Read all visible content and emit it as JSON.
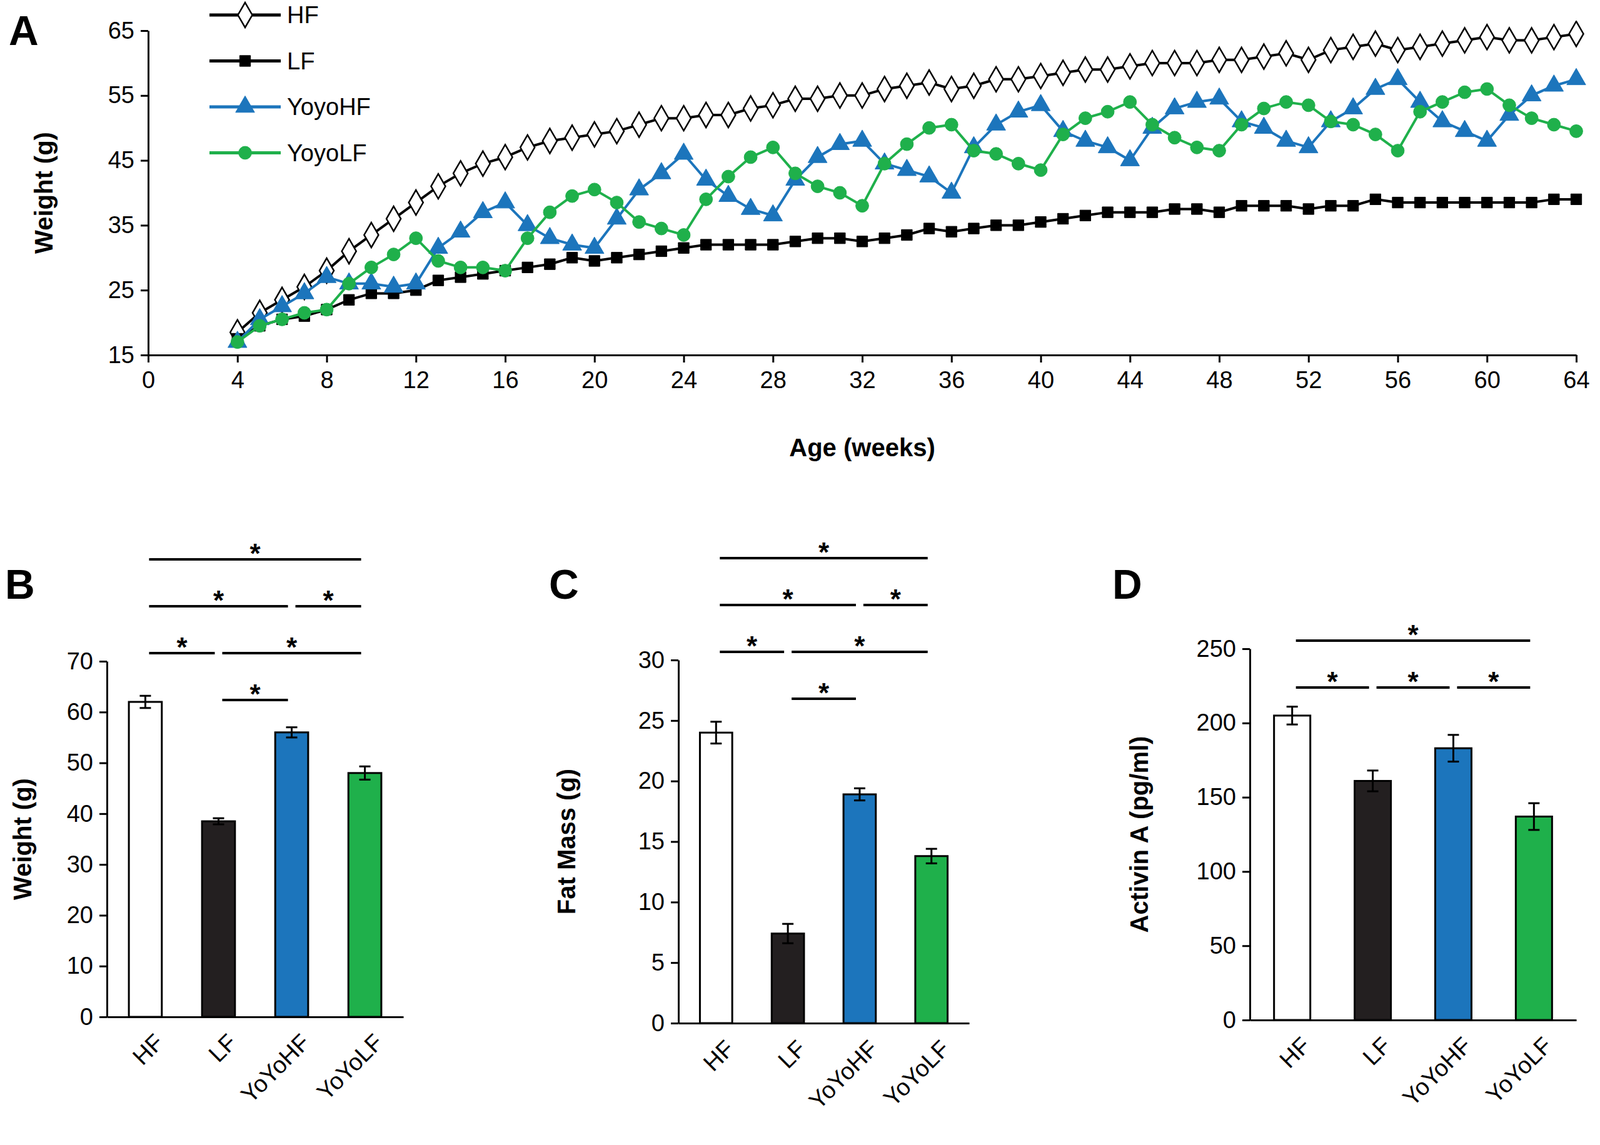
{
  "chart_data": [
    {
      "type": "line",
      "title": "A",
      "x_label": "Age (weeks)",
      "y_label": "Weight (g)",
      "legend": "top-left",
      "x": [
        4,
        5,
        6,
        7,
        8,
        9,
        10,
        11,
        12,
        13,
        14,
        15,
        16,
        17,
        18,
        19,
        20,
        21,
        22,
        23,
        24,
        25,
        26,
        27,
        28,
        29,
        30,
        31,
        32,
        33,
        34,
        35,
        36,
        37,
        38,
        39,
        40,
        41,
        42,
        43,
        44,
        45,
        46,
        47,
        48,
        49,
        50,
        51,
        52,
        53,
        54,
        55,
        56,
        57,
        58,
        59,
        60,
        61,
        62,
        63,
        64
      ],
      "xlim": [
        0,
        64
      ],
      "xticks": [
        0,
        4,
        8,
        12,
        16,
        20,
        24,
        28,
        32,
        36,
        40,
        44,
        48,
        52,
        56,
        60,
        64
      ],
      "ylim": [
        15,
        65
      ],
      "yticks": [
        15,
        25,
        35,
        45,
        55,
        65
      ],
      "series": [
        {
          "name": "HF",
          "color": "#000000",
          "marker": "open-diamond",
          "line_style": "solid",
          "values": [
            18.5,
            21.5,
            23.5,
            25.5,
            28,
            31,
            33.5,
            36,
            38.5,
            41,
            43,
            44.5,
            45.5,
            47,
            48,
            48.5,
            49,
            49.5,
            50.5,
            51.5,
            51.5,
            52,
            52,
            53,
            53.5,
            54.5,
            54.5,
            55,
            55,
            56,
            56.5,
            57,
            56,
            56.5,
            57.5,
            57.5,
            58,
            58.5,
            59,
            59,
            59.5,
            60,
            60,
            60,
            60.5,
            60.5,
            61,
            61.5,
            60.5,
            62,
            62.5,
            63,
            62,
            62.5,
            63,
            63.5,
            64,
            63.5,
            63.5,
            64,
            64.5
          ]
        },
        {
          "name": "LF",
          "color": "#000000",
          "marker": "square",
          "line_style": "solid",
          "values": [
            17.5,
            19.5,
            20.5,
            21,
            22,
            23.5,
            24.5,
            24.5,
            25,
            26.5,
            27,
            27.5,
            28,
            28.5,
            29,
            30,
            29.5,
            30,
            30.5,
            31,
            31.5,
            32,
            32,
            32,
            32,
            32.5,
            33,
            33,
            32.5,
            33,
            33.5,
            34.5,
            34,
            34.5,
            35,
            35,
            35.5,
            36,
            36.5,
            37,
            37,
            37,
            37.5,
            37.5,
            37,
            38,
            38,
            38,
            37.5,
            38,
            38,
            39,
            38.5,
            38.5,
            38.5,
            38.5,
            38.5,
            38.5,
            38.5,
            39,
            39
          ]
        },
        {
          "name": "YoyoHF",
          "color": "#1c75bc",
          "marker": "triangle",
          "line_style": "solid",
          "values": [
            17,
            20.5,
            22.5,
            24.5,
            27,
            26,
            26,
            25.5,
            26,
            31.5,
            34,
            37,
            38.5,
            35,
            33,
            32,
            31.5,
            36,
            40.5,
            43,
            46,
            42,
            39.5,
            37.5,
            36.5,
            42,
            45.5,
            47.5,
            48,
            44.5,
            43.5,
            42.5,
            40,
            47,
            50.5,
            52.5,
            53.5,
            49.5,
            48,
            47,
            45,
            50,
            53,
            54,
            54.5,
            51,
            50,
            48,
            47,
            51,
            53,
            56,
            57.5,
            54,
            51,
            49.5,
            48,
            52,
            55,
            56.5,
            57.5
          ]
        },
        {
          "name": "YoyoLF",
          "color": "#1fb04b",
          "marker": "circle",
          "line_style": "solid",
          "values": [
            17,
            19.5,
            20.5,
            21.5,
            22,
            26,
            28.5,
            30.5,
            33,
            29.5,
            28.5,
            28.5,
            28,
            33,
            37,
            39.5,
            40.5,
            38.5,
            35.5,
            34.5,
            33.5,
            39,
            42.5,
            45.5,
            47,
            43,
            41,
            40,
            38,
            44.5,
            47.5,
            50,
            50.5,
            46.5,
            46,
            44.5,
            43.5,
            49,
            51.5,
            52.5,
            54,
            50.5,
            48.5,
            47,
            46.5,
            50.5,
            53,
            54,
            53.5,
            51,
            50.5,
            49,
            46.5,
            52.5,
            54,
            55.5,
            56,
            53.5,
            51.5,
            50.5,
            49.5
          ]
        }
      ]
    },
    {
      "type": "bar",
      "title": "B",
      "y_label": "Weight (g)",
      "categories": [
        "HF",
        "LF",
        "YoYoHF",
        "YoYoLF"
      ],
      "values": [
        62,
        38.5,
        56,
        48
      ],
      "errors": [
        1.2,
        0.6,
        1.0,
        1.3
      ],
      "colors": [
        "#ffffff",
        "#231f20",
        "#1c75bc",
        "#1fb04b"
      ],
      "ylim": [
        0,
        70
      ],
      "yticks": [
        0,
        10,
        20,
        30,
        40,
        50,
        60,
        70
      ],
      "annotations": [
        {
          "text": "*",
          "between": [
            "HF",
            "YoYoLF"
          ]
        },
        {
          "text": "*",
          "between": [
            "HF",
            "YoYoHF"
          ]
        },
        {
          "text": "*",
          "between": [
            "HF",
            "LF"
          ]
        },
        {
          "text": "*",
          "between": [
            "LF",
            "YoYoLF"
          ]
        },
        {
          "text": "*",
          "between": [
            "LF",
            "YoYoHF"
          ]
        },
        {
          "text": "*",
          "between": [
            "YoYoHF",
            "YoYoLF"
          ]
        }
      ]
    },
    {
      "type": "bar",
      "title": "C",
      "y_label": "Fat Mass (g)",
      "categories": [
        "HF",
        "LF",
        "YoYoHF",
        "YoYoLF"
      ],
      "values": [
        24,
        7.4,
        18.9,
        13.8
      ],
      "errors": [
        0.9,
        0.8,
        0.5,
        0.6
      ],
      "colors": [
        "#ffffff",
        "#231f20",
        "#1c75bc",
        "#1fb04b"
      ],
      "ylim": [
        0,
        30
      ],
      "yticks": [
        0,
        5,
        10,
        15,
        20,
        25,
        30
      ],
      "annotations": [
        {
          "text": "*",
          "between": [
            "HF",
            "YoYoLF"
          ]
        },
        {
          "text": "*",
          "between": [
            "HF",
            "YoYoHF"
          ]
        },
        {
          "text": "*",
          "between": [
            "HF",
            "LF"
          ]
        },
        {
          "text": "*",
          "between": [
            "LF",
            "YoYoLF"
          ]
        },
        {
          "text": "*",
          "between": [
            "LF",
            "YoYoHF"
          ]
        },
        {
          "text": "*",
          "between": [
            "YoYoHF",
            "YoYoLF"
          ]
        }
      ]
    },
    {
      "type": "bar",
      "title": "D",
      "y_label": "Activin A (pg/ml)",
      "categories": [
        "HF",
        "LF",
        "YoYoHF",
        "YoYoLF"
      ],
      "values": [
        205,
        161,
        183,
        137
      ],
      "errors": [
        6,
        7,
        9,
        9
      ],
      "colors": [
        "#ffffff",
        "#231f20",
        "#1c75bc",
        "#1fb04b"
      ],
      "ylim": [
        0,
        250
      ],
      "yticks": [
        0,
        50,
        100,
        150,
        200,
        250
      ],
      "annotations": [
        {
          "text": "*",
          "between": [
            "HF",
            "YoYoLF"
          ]
        },
        {
          "text": "*",
          "between": [
            "HF",
            "LF"
          ]
        },
        {
          "text": "*",
          "between": [
            "LF",
            "YoYoHF"
          ]
        },
        {
          "text": "*",
          "between": [
            "YoYoHF",
            "YoYoLF"
          ]
        }
      ]
    }
  ]
}
